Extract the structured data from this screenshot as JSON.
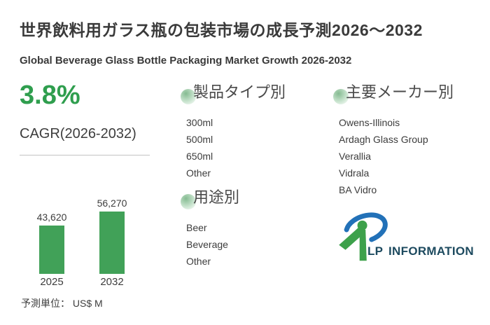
{
  "header": {
    "title_jp": "世界飲料用ガラス瓶の包装市場の成長予測2026～2032",
    "title_en": "Global Beverage Glass Bottle Packaging Market Growth 2026-2032"
  },
  "summary": {
    "cagr_value": "3.8%",
    "cagr_label": "CAGR(2026-2032)"
  },
  "chart_data": {
    "type": "bar",
    "categories": [
      "2025",
      "2032"
    ],
    "values": [
      43620,
      56270
    ],
    "value_labels": [
      "43,620",
      "56,270"
    ],
    "title": "",
    "xlabel": "",
    "ylabel": "",
    "unit_note": "予測単位： US$ M",
    "ylim": [
      0,
      60000
    ],
    "grid": false,
    "legend": false,
    "bar_color": "#41a158"
  },
  "sections": {
    "product_type": {
      "heading": "製品タイプ別",
      "items": [
        "300ml",
        "500ml",
        "650ml",
        "Other"
      ]
    },
    "application": {
      "heading": "用途別",
      "items": [
        "Beer",
        "Beverage",
        "Other"
      ]
    },
    "manufacturers": {
      "heading": "主要メーカー別",
      "items": [
        "Owens-Illinois",
        "Ardagh Glass Group",
        "Verallia",
        "Vidrala",
        "BA Vidro"
      ]
    }
  },
  "logo": {
    "text": "LP INFORMATION",
    "icon": "lp-information-logo-icon"
  },
  "colors": {
    "accent_green": "#2f9e4e",
    "bar_green": "#41a158",
    "heading_circle_green": "#85bb91",
    "logo_blue": "#2271b8",
    "logo_green": "#3da14b",
    "logo_text": "#1d4a5f"
  }
}
